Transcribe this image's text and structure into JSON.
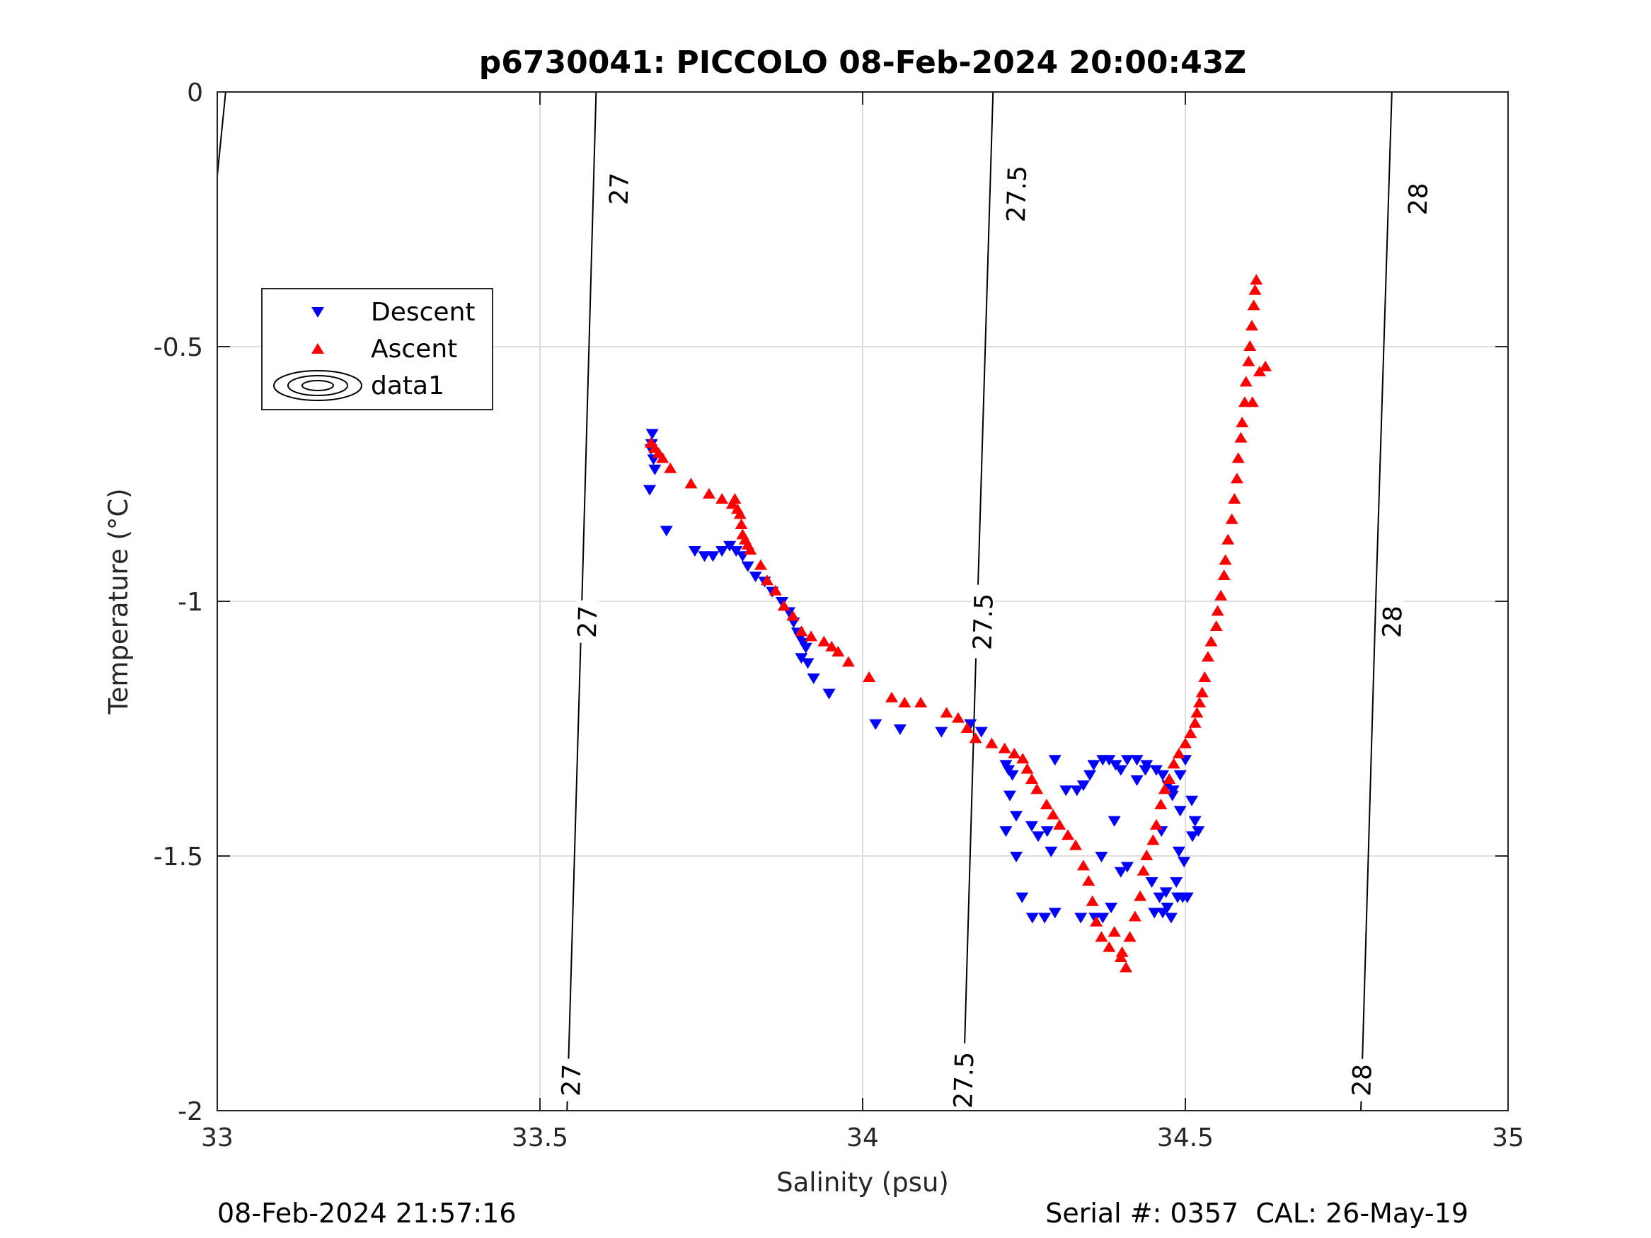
{
  "chart_data": {
    "type": "scatter",
    "title": "p6730041: PICCOLO 08-Feb-2024 20:00:43Z",
    "xlabel": "Salinity (psu)",
    "ylabel": "Temperature (°C)",
    "xlim": [
      33,
      35
    ],
    "ylim": [
      -2,
      0
    ],
    "xticks": [
      33,
      33.5,
      34,
      34.5,
      35
    ],
    "yticks": [
      0,
      -0.5,
      -1,
      -1.5,
      -2
    ],
    "xtick_labels": [
      "33",
      "33.5",
      "34",
      "34.5",
      "35"
    ],
    "ytick_labels": [
      "0",
      "-0.5",
      "-1",
      "-1.5",
      "-2"
    ],
    "grid": true,
    "legend_position": "upper-left",
    "legend": [
      "Descent",
      "Ascent",
      "data1"
    ],
    "colors": {
      "descent": "#0000ff",
      "ascent": "#ff0000",
      "contour": "#000000",
      "grid": "#dddddd",
      "axis": "#262626"
    },
    "contours": [
      {
        "label": "27",
        "points": [
          [
            33.542,
            -2.0
          ],
          [
            33.565,
            -1.0
          ],
          [
            33.587,
            0.0
          ]
        ],
        "label_positions": [
          [
            33.548,
            -1.94
          ],
          [
            33.573,
            -1.04
          ],
          [
            33.622,
            -0.19
          ]
        ]
      },
      {
        "label": "27.5",
        "points": [
          [
            34.155,
            -2.0
          ],
          [
            34.178,
            -1.0
          ],
          [
            34.202,
            0.0
          ]
        ],
        "label_positions": [
          [
            34.156,
            -1.94
          ],
          [
            34.186,
            -1.04
          ],
          [
            34.238,
            -0.2
          ]
        ]
      },
      {
        "label": "28",
        "points": [
          [
            34.772,
            -2.0
          ],
          [
            34.795,
            -1.0
          ],
          [
            34.82,
            0.0
          ]
        ],
        "label_positions": [
          [
            34.773,
            -1.94
          ],
          [
            34.82,
            -1.04
          ],
          [
            34.86,
            -0.21
          ]
        ]
      },
      {
        "label": "",
        "points": [
          [
            32.998,
            -0.19
          ],
          [
            33.013,
            0.0
          ]
        ],
        "label_positions": []
      }
    ],
    "series": [
      {
        "name": "Descent",
        "marker": "triangle-down",
        "points": [
          [
            33.674,
            -0.67
          ],
          [
            33.673,
            -0.69
          ],
          [
            33.672,
            -0.7
          ],
          [
            33.676,
            -0.72
          ],
          [
            33.678,
            -0.74
          ],
          [
            33.67,
            -0.78
          ],
          [
            33.696,
            -0.86
          ],
          [
            33.74,
            -0.9
          ],
          [
            33.755,
            -0.91
          ],
          [
            33.768,
            -0.91
          ],
          [
            33.782,
            -0.9
          ],
          [
            33.794,
            -0.89
          ],
          [
            33.804,
            -0.9
          ],
          [
            33.814,
            -0.91
          ],
          [
            33.822,
            -0.93
          ],
          [
            33.834,
            -0.95
          ],
          [
            33.848,
            -0.96
          ],
          [
            33.86,
            -0.98
          ],
          [
            33.875,
            -1.0
          ],
          [
            33.886,
            -1.02
          ],
          [
            33.893,
            -1.04
          ],
          [
            33.899,
            -1.06
          ],
          [
            33.903,
            -1.07
          ],
          [
            33.908,
            -1.08
          ],
          [
            33.912,
            -1.09
          ],
          [
            33.905,
            -1.11
          ],
          [
            33.915,
            -1.12
          ],
          [
            33.924,
            -1.15
          ],
          [
            33.948,
            -1.18
          ],
          [
            34.02,
            -1.24
          ],
          [
            34.058,
            -1.25
          ],
          [
            34.122,
            -1.255
          ],
          [
            34.167,
            -1.24
          ],
          [
            34.184,
            -1.255
          ],
          [
            34.222,
            -1.32
          ],
          [
            34.226,
            -1.33
          ],
          [
            34.232,
            -1.34
          ],
          [
            34.228,
            -1.38
          ],
          [
            34.238,
            -1.42
          ],
          [
            34.222,
            -1.45
          ],
          [
            34.238,
            -1.5
          ],
          [
            34.262,
            -1.44
          ],
          [
            34.272,
            -1.46
          ],
          [
            34.286,
            -1.45
          ],
          [
            34.292,
            -1.49
          ],
          [
            34.247,
            -1.58
          ],
          [
            34.263,
            -1.62
          ],
          [
            34.282,
            -1.62
          ],
          [
            34.298,
            -1.61
          ],
          [
            34.298,
            -1.31
          ],
          [
            34.332,
            -1.37
          ],
          [
            34.342,
            -1.36
          ],
          [
            34.352,
            -1.34
          ],
          [
            34.358,
            -1.32
          ],
          [
            34.338,
            -1.62
          ],
          [
            34.36,
            -1.62
          ],
          [
            34.372,
            -1.31
          ],
          [
            34.382,
            -1.31
          ],
          [
            34.392,
            -1.32
          ],
          [
            34.41,
            -1.31
          ],
          [
            34.425,
            -1.31
          ],
          [
            34.44,
            -1.32
          ],
          [
            34.455,
            -1.33
          ],
          [
            34.465,
            -1.34
          ],
          [
            34.473,
            -1.36
          ],
          [
            34.48,
            -1.38
          ],
          [
            34.385,
            -1.6
          ],
          [
            34.4,
            -1.53
          ],
          [
            34.41,
            -1.52
          ],
          [
            34.448,
            -1.55
          ],
          [
            34.46,
            -1.58
          ],
          [
            34.47,
            -1.57
          ],
          [
            34.486,
            -1.55
          ],
          [
            34.498,
            -1.51
          ],
          [
            34.492,
            -1.41
          ],
          [
            34.51,
            -1.39
          ],
          [
            34.515,
            -1.43
          ],
          [
            34.52,
            -1.45
          ],
          [
            34.511,
            -1.46
          ],
          [
            34.49,
            -1.49
          ],
          [
            34.465,
            -1.61
          ],
          [
            34.478,
            -1.62
          ],
          [
            34.488,
            -1.58
          ],
          [
            34.496,
            -1.58
          ],
          [
            34.503,
            -1.58
          ],
          [
            34.472,
            -1.6
          ],
          [
            34.452,
            -1.61
          ],
          [
            34.39,
            -1.43
          ],
          [
            34.37,
            -1.5
          ],
          [
            34.315,
            -1.37
          ],
          [
            34.372,
            -1.62
          ],
          [
            34.5,
            -1.31
          ],
          [
            34.492,
            -1.34
          ],
          [
            34.481,
            -1.37
          ],
          [
            34.463,
            -1.45
          ],
          [
            34.438,
            -1.33
          ],
          [
            34.425,
            -1.35
          ],
          [
            34.4,
            -1.33
          ]
        ]
      },
      {
        "name": "Ascent",
        "marker": "triangle-up",
        "points": [
          [
            33.672,
            -0.69
          ],
          [
            33.678,
            -0.7
          ],
          [
            33.684,
            -0.71
          ],
          [
            33.69,
            -0.72
          ],
          [
            33.702,
            -0.74
          ],
          [
            33.734,
            -0.77
          ],
          [
            33.762,
            -0.79
          ],
          [
            33.782,
            -0.8
          ],
          [
            33.798,
            -0.81
          ],
          [
            33.802,
            -0.8
          ],
          [
            33.806,
            -0.82
          ],
          [
            33.81,
            -0.83
          ],
          [
            33.812,
            -0.85
          ],
          [
            33.814,
            -0.87
          ],
          [
            33.818,
            -0.88
          ],
          [
            33.822,
            -0.89
          ],
          [
            33.826,
            -0.9
          ],
          [
            33.842,
            -0.93
          ],
          [
            33.852,
            -0.96
          ],
          [
            33.865,
            -0.98
          ],
          [
            33.878,
            -1.01
          ],
          [
            33.892,
            -1.03
          ],
          [
            33.905,
            -1.06
          ],
          [
            33.92,
            -1.07
          ],
          [
            33.94,
            -1.08
          ],
          [
            33.952,
            -1.09
          ],
          [
            33.962,
            -1.1
          ],
          [
            33.978,
            -1.12
          ],
          [
            34.01,
            -1.15
          ],
          [
            34.045,
            -1.19
          ],
          [
            34.065,
            -1.2
          ],
          [
            34.09,
            -1.2
          ],
          [
            34.13,
            -1.22
          ],
          [
            34.148,
            -1.23
          ],
          [
            34.162,
            -1.25
          ],
          [
            34.175,
            -1.27
          ],
          [
            34.2,
            -1.28
          ],
          [
            34.22,
            -1.29
          ],
          [
            34.235,
            -1.3
          ],
          [
            34.248,
            -1.31
          ],
          [
            34.255,
            -1.33
          ],
          [
            34.262,
            -1.35
          ],
          [
            34.27,
            -1.37
          ],
          [
            34.285,
            -1.4
          ],
          [
            34.295,
            -1.42
          ],
          [
            34.305,
            -1.44
          ],
          [
            34.318,
            -1.46
          ],
          [
            34.33,
            -1.48
          ],
          [
            34.342,
            -1.52
          ],
          [
            34.35,
            -1.55
          ],
          [
            34.356,
            -1.59
          ],
          [
            34.362,
            -1.63
          ],
          [
            34.37,
            -1.66
          ],
          [
            34.382,
            -1.68
          ],
          [
            34.39,
            -1.65
          ],
          [
            34.4,
            -1.7
          ],
          [
            34.408,
            -1.72
          ],
          [
            34.402,
            -1.69
          ],
          [
            34.414,
            -1.66
          ],
          [
            34.422,
            -1.62
          ],
          [
            34.43,
            -1.58
          ],
          [
            34.435,
            -1.53
          ],
          [
            34.44,
            -1.5
          ],
          [
            34.45,
            -1.47
          ],
          [
            34.455,
            -1.44
          ],
          [
            34.462,
            -1.4
          ],
          [
            34.468,
            -1.37
          ],
          [
            34.475,
            -1.35
          ],
          [
            34.482,
            -1.32
          ],
          [
            34.49,
            -1.3
          ],
          [
            34.5,
            -1.28
          ],
          [
            34.508,
            -1.26
          ],
          [
            34.515,
            -1.24
          ],
          [
            34.518,
            -1.22
          ],
          [
            34.522,
            -1.2
          ],
          [
            34.526,
            -1.18
          ],
          [
            34.53,
            -1.15
          ],
          [
            34.535,
            -1.11
          ],
          [
            34.54,
            -1.08
          ],
          [
            34.548,
            -1.05
          ],
          [
            34.55,
            -1.02
          ],
          [
            34.555,
            -0.99
          ],
          [
            34.56,
            -0.95
          ],
          [
            34.562,
            -0.92
          ],
          [
            34.566,
            -0.88
          ],
          [
            34.572,
            -0.84
          ],
          [
            34.576,
            -0.8
          ],
          [
            34.58,
            -0.76
          ],
          [
            34.582,
            -0.72
          ],
          [
            34.586,
            -0.68
          ],
          [
            34.588,
            -0.65
          ],
          [
            34.592,
            -0.61
          ],
          [
            34.594,
            -0.57
          ],
          [
            34.598,
            -0.53
          ],
          [
            34.6,
            -0.5
          ],
          [
            34.603,
            -0.46
          ],
          [
            34.606,
            -0.42
          ],
          [
            34.608,
            -0.39
          ],
          [
            34.61,
            -0.37
          ],
          [
            34.624,
            -0.54
          ],
          [
            34.615,
            -0.55
          ],
          [
            34.604,
            -0.61
          ]
        ]
      }
    ]
  },
  "footer": {
    "left": "08-Feb-2024 21:57:16",
    "right": "Serial #: 0357  CAL: 26-May-19"
  }
}
